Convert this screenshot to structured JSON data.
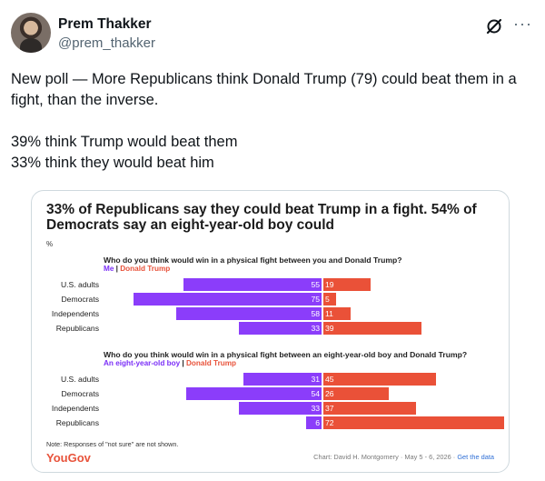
{
  "tweet": {
    "author_name": "Prem Thakker",
    "author_handle": "@prem_thakker",
    "text_line1": "New poll — More Republicans think Donald Trump (79) could beat them in a fight, than the inverse.",
    "text_line2": "39% think Trump would beat them",
    "text_line3": "33% think they would beat him",
    "icons": [
      "grok-icon",
      "more-icon"
    ],
    "more_glyph": "···"
  },
  "card": {
    "title": "33% of Republicans say they could beat Trump in a fight. 54% of Democrats say an eight-year-old boy could",
    "unit_label": "%",
    "note": "Note: Responses of \"not sure\" are not shown.",
    "brand": "YouGov",
    "credit": "Chart: David H. Montgomery · May 5 - 6, 2026 · ",
    "credit_link": "Get the data"
  },
  "colors": {
    "purple": "#8b3dfa",
    "red": "#ea5138",
    "brand": "#e8533b"
  },
  "chart_data": [
    {
      "type": "bar",
      "title": "Who do you think would win in a physical fight between you and Donald Trump?",
      "legend": [
        "Me",
        "Donald Trump"
      ],
      "categories": [
        "U.S. adults",
        "Democrats",
        "Independents",
        "Republicans"
      ],
      "series": [
        {
          "name": "Me",
          "values": [
            55,
            75,
            58,
            33
          ]
        },
        {
          "name": "Donald Trump",
          "values": [
            19,
            5,
            11,
            39
          ]
        }
      ]
    },
    {
      "type": "bar",
      "title": "Who do you think would win in a physical fight between an eight-year-old boy and Donald Trump?",
      "legend": [
        "An eight-year-old boy",
        "Donald Trump"
      ],
      "categories": [
        "U.S. adults",
        "Democrats",
        "Independents",
        "Republicans"
      ],
      "series": [
        {
          "name": "An eight-year-old boy",
          "values": [
            31,
            54,
            33,
            6
          ]
        },
        {
          "name": "Donald Trump",
          "values": [
            45,
            26,
            37,
            72
          ]
        }
      ]
    }
  ]
}
